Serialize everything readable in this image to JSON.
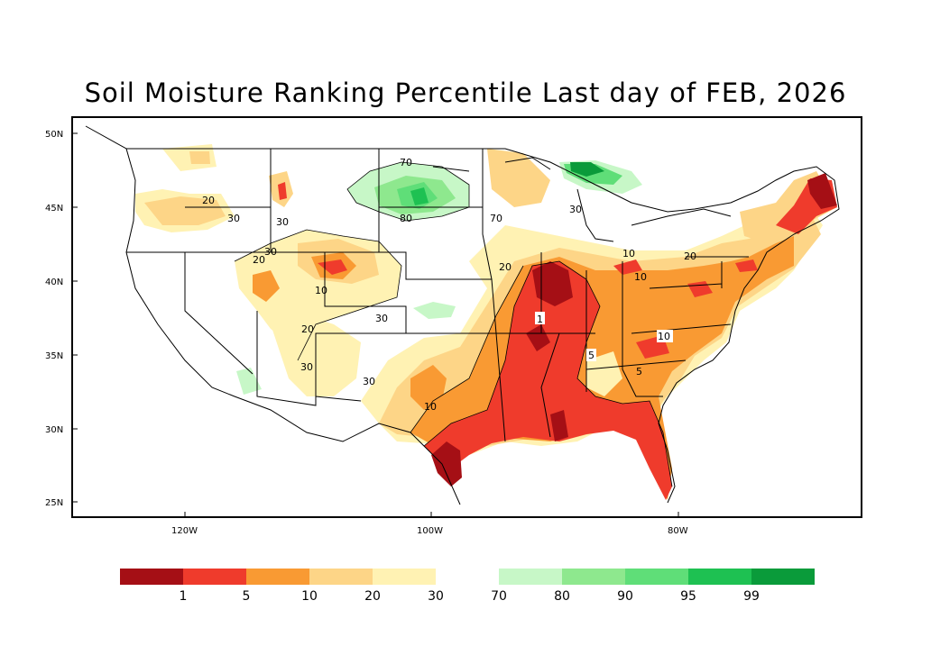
{
  "title": "Soil Moisture Ranking Percentile Last day of FEB, 2026",
  "lat_ticks": [
    "50N",
    "45N",
    "40N",
    "35N",
    "30N",
    "25N"
  ],
  "lon_ticks": [
    "120W",
    "100W",
    "80W"
  ],
  "contour_labels": [
    "70",
    "80",
    "20",
    "30",
    "30",
    "30",
    "20",
    "10",
    "30",
    "20",
    "30",
    "30",
    "70",
    "30",
    "20",
    "10",
    "10",
    "20",
    "1",
    "5",
    "10",
    "5",
    "10"
  ],
  "colorbar": {
    "low_colors": [
      "#a50f15",
      "#ef3b2c",
      "#f99a33",
      "#fdd587",
      "#fff2b3"
    ],
    "high_colors": [
      "#c7f7c7",
      "#8ee88e",
      "#5fde78",
      "#1ec152",
      "#0a9b3a"
    ],
    "labels": [
      "1",
      "5",
      "10",
      "20",
      "30",
      "70",
      "80",
      "90",
      "95",
      "99"
    ]
  }
}
